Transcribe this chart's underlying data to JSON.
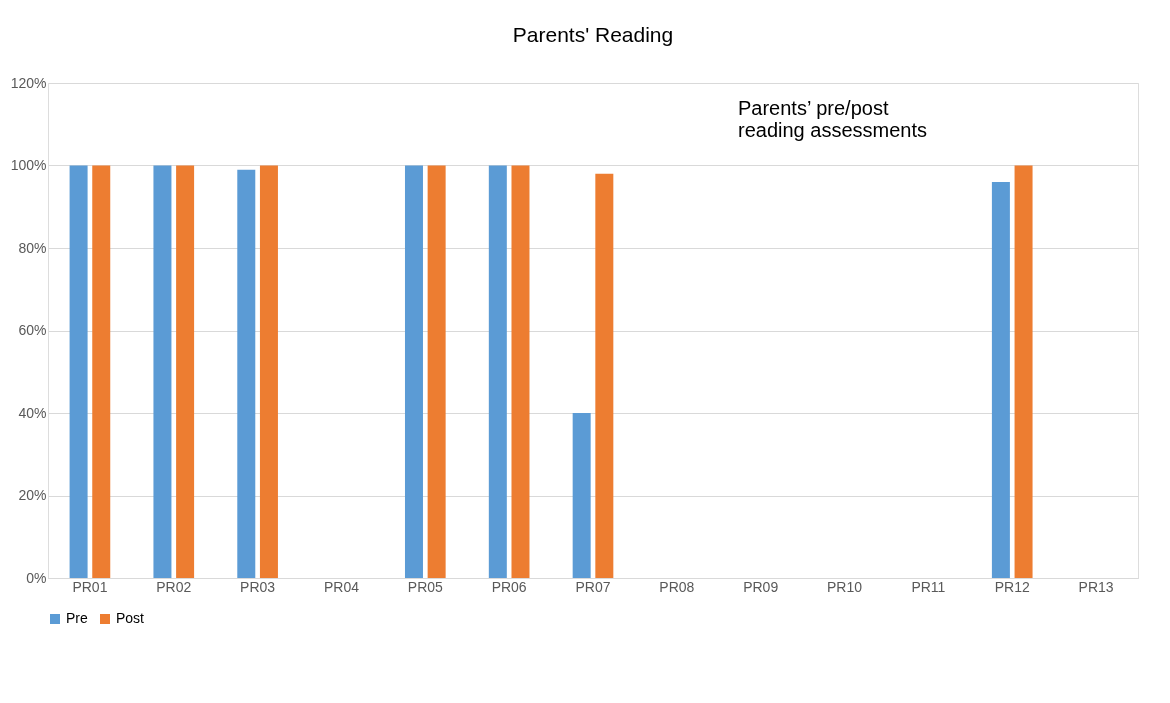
{
  "chart_data": {
    "type": "bar",
    "title": "Parents' Reading",
    "categories": [
      "PR01",
      "PR02",
      "PR03",
      "PR04",
      "PR05",
      "PR06",
      "PR07",
      "PR08",
      "PR09",
      "PR10",
      "PR11",
      "PR12",
      "PR13"
    ],
    "series": [
      {
        "name": "Pre",
        "color": "#5b9bd5",
        "values": [
          100,
          100,
          99,
          0,
          100,
          100,
          40,
          0,
          0,
          0,
          0,
          96,
          0
        ]
      },
      {
        "name": "Post",
        "color": "#ed7d31",
        "values": [
          100,
          100,
          100,
          0,
          100,
          100,
          98,
          0,
          0,
          0,
          0,
          100,
          0
        ]
      }
    ],
    "ylim": [
      0,
      120
    ],
    "yticks": [
      {
        "value": 0,
        "label": "0%"
      },
      {
        "value": 20,
        "label": "20%"
      },
      {
        "value": 40,
        "label": "40%"
      },
      {
        "value": 60,
        "label": "60%"
      },
      {
        "value": 80,
        "label": "80%"
      },
      {
        "value": 100,
        "label": "100%"
      },
      {
        "value": 120,
        "label": "120%"
      }
    ],
    "annotations": [
      "Parents’ pre/post\nreading assessments"
    ],
    "grid": "y",
    "legend": "bottom"
  }
}
